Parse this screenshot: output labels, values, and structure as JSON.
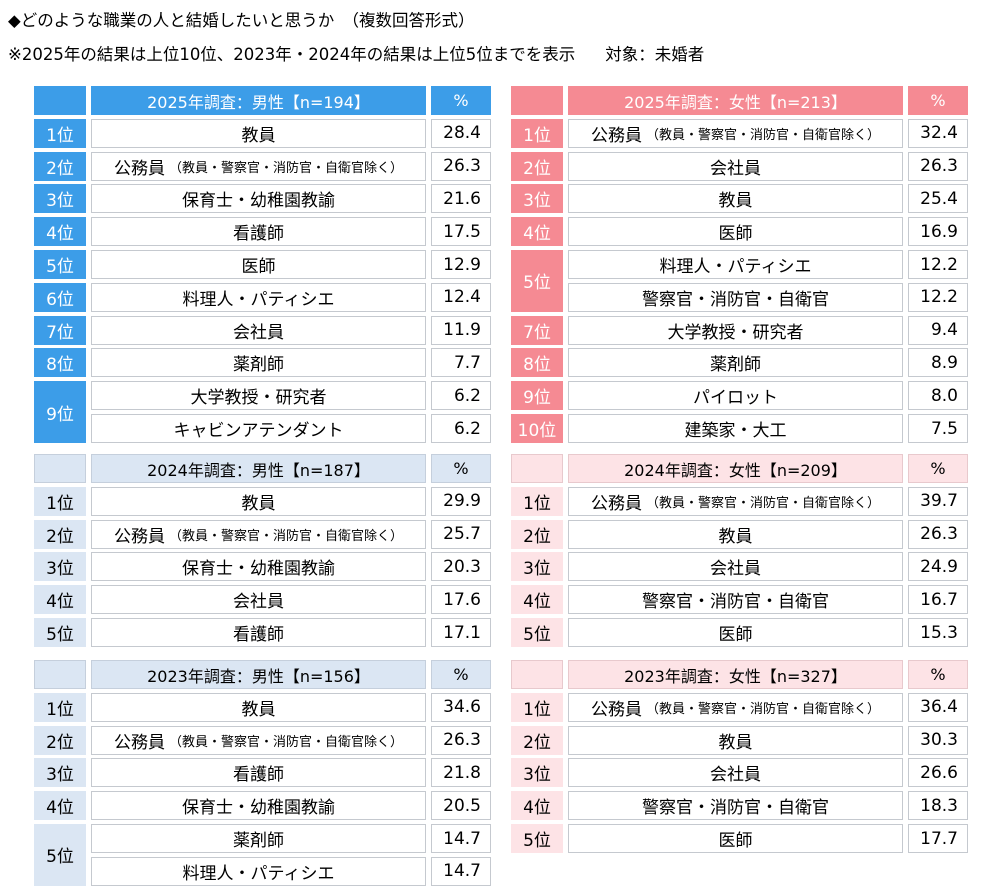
{
  "header": {
    "line1": "◆どのような職業の人と結婚したいと思うか　（複数回答形式）",
    "line2": "※2025年の結果は上位10位、2023年・2024年の結果は上位5位までを表示",
    "line2_target": "対象：未婚者"
  },
  "pct_label": "%",
  "chart_data": {
    "type": "table",
    "tables": [
      {
        "id": "m25",
        "title": "2025年調査：男性【n=194】",
        "rows": [
          {
            "rank": "1位",
            "name": "教員",
            "note": "",
            "value": "28.4"
          },
          {
            "rank": "2位",
            "name": "公務員",
            "note": "（教員・警察官・消防官・自衛官除く）",
            "value": "26.3"
          },
          {
            "rank": "3位",
            "name": "保育士・幼稚園教諭",
            "note": "",
            "value": "21.6"
          },
          {
            "rank": "4位",
            "name": "看護師",
            "note": "",
            "value": "17.5"
          },
          {
            "rank": "5位",
            "name": "医師",
            "note": "",
            "value": "12.9"
          },
          {
            "rank": "6位",
            "name": "料理人・パティシエ",
            "note": "",
            "value": "12.4"
          },
          {
            "rank": "7位",
            "name": "会社員",
            "note": "",
            "value": "11.9"
          },
          {
            "rank": "8位",
            "name": "薬剤師",
            "note": "",
            "value": "7.7"
          },
          {
            "rank": "9位",
            "name": "大学教授・研究者",
            "note": "",
            "value": "6.2"
          },
          {
            "rank": "",
            "name": "キャビンアテンダント",
            "note": "",
            "value": "6.2"
          }
        ]
      },
      {
        "id": "f25",
        "title": "2025年調査：女性【n=213】",
        "rows": [
          {
            "rank": "1位",
            "name": "公務員",
            "note": "（教員・警察官・消防官・自衛官除く）",
            "value": "32.4"
          },
          {
            "rank": "2位",
            "name": "会社員",
            "note": "",
            "value": "26.3"
          },
          {
            "rank": "3位",
            "name": "教員",
            "note": "",
            "value": "25.4"
          },
          {
            "rank": "4位",
            "name": "医師",
            "note": "",
            "value": "16.9"
          },
          {
            "rank": "5位",
            "name": "料理人・パティシエ",
            "note": "",
            "value": "12.2"
          },
          {
            "rank": "",
            "name": "警察官・消防官・自衛官",
            "note": "",
            "value": "12.2"
          },
          {
            "rank": "7位",
            "name": "大学教授・研究者",
            "note": "",
            "value": "9.4"
          },
          {
            "rank": "8位",
            "name": "薬剤師",
            "note": "",
            "value": "8.9"
          },
          {
            "rank": "9位",
            "name": "パイロット",
            "note": "",
            "value": "8.0"
          },
          {
            "rank": "10位",
            "name": "建築家・大工",
            "note": "",
            "value": "7.5"
          }
        ]
      },
      {
        "id": "m24",
        "title": "2024年調査：男性【n=187】",
        "rows": [
          {
            "rank": "1位",
            "name": "教員",
            "note": "",
            "value": "29.9"
          },
          {
            "rank": "2位",
            "name": "公務員",
            "note": "（教員・警察官・消防官・自衛官除く）",
            "value": "25.7"
          },
          {
            "rank": "3位",
            "name": "保育士・幼稚園教諭",
            "note": "",
            "value": "20.3"
          },
          {
            "rank": "4位",
            "name": "会社員",
            "note": "",
            "value": "17.6"
          },
          {
            "rank": "5位",
            "name": "看護師",
            "note": "",
            "value": "17.1"
          }
        ]
      },
      {
        "id": "f24",
        "title": "2024年調査：女性【n=209】",
        "rows": [
          {
            "rank": "1位",
            "name": "公務員",
            "note": "（教員・警察官・消防官・自衛官除く）",
            "value": "39.7"
          },
          {
            "rank": "2位",
            "name": "教員",
            "note": "",
            "value": "26.3"
          },
          {
            "rank": "3位",
            "name": "会社員",
            "note": "",
            "value": "24.9"
          },
          {
            "rank": "4位",
            "name": "警察官・消防官・自衛官",
            "note": "",
            "value": "16.7"
          },
          {
            "rank": "5位",
            "name": "医師",
            "note": "",
            "value": "15.3"
          }
        ]
      },
      {
        "id": "m23",
        "title": "2023年調査：男性【n=156】",
        "rows": [
          {
            "rank": "1位",
            "name": "教員",
            "note": "",
            "value": "34.6"
          },
          {
            "rank": "2位",
            "name": "公務員",
            "note": "（教員・警察官・消防官・自衛官除く）",
            "value": "26.3"
          },
          {
            "rank": "3位",
            "name": "看護師",
            "note": "",
            "value": "21.8"
          },
          {
            "rank": "4位",
            "name": "保育士・幼稚園教諭",
            "note": "",
            "value": "20.5"
          },
          {
            "rank": "5位",
            "name": "薬剤師",
            "note": "",
            "value": "14.7"
          },
          {
            "rank": "",
            "name": "料理人・パティシエ",
            "note": "",
            "value": "14.7"
          }
        ]
      },
      {
        "id": "f23",
        "title": "2023年調査：女性【n=327】",
        "rows": [
          {
            "rank": "1位",
            "name": "公務員",
            "note": "（教員・警察官・消防官・自衛官除く）",
            "value": "36.4"
          },
          {
            "rank": "2位",
            "name": "教員",
            "note": "",
            "value": "30.3"
          },
          {
            "rank": "3位",
            "name": "会社員",
            "note": "",
            "value": "26.6"
          },
          {
            "rank": "4位",
            "name": "警察官・消防官・自衛官",
            "note": "",
            "value": "18.3"
          },
          {
            "rank": "5位",
            "name": "医師",
            "note": "",
            "value": "17.7"
          }
        ]
      }
    ]
  }
}
